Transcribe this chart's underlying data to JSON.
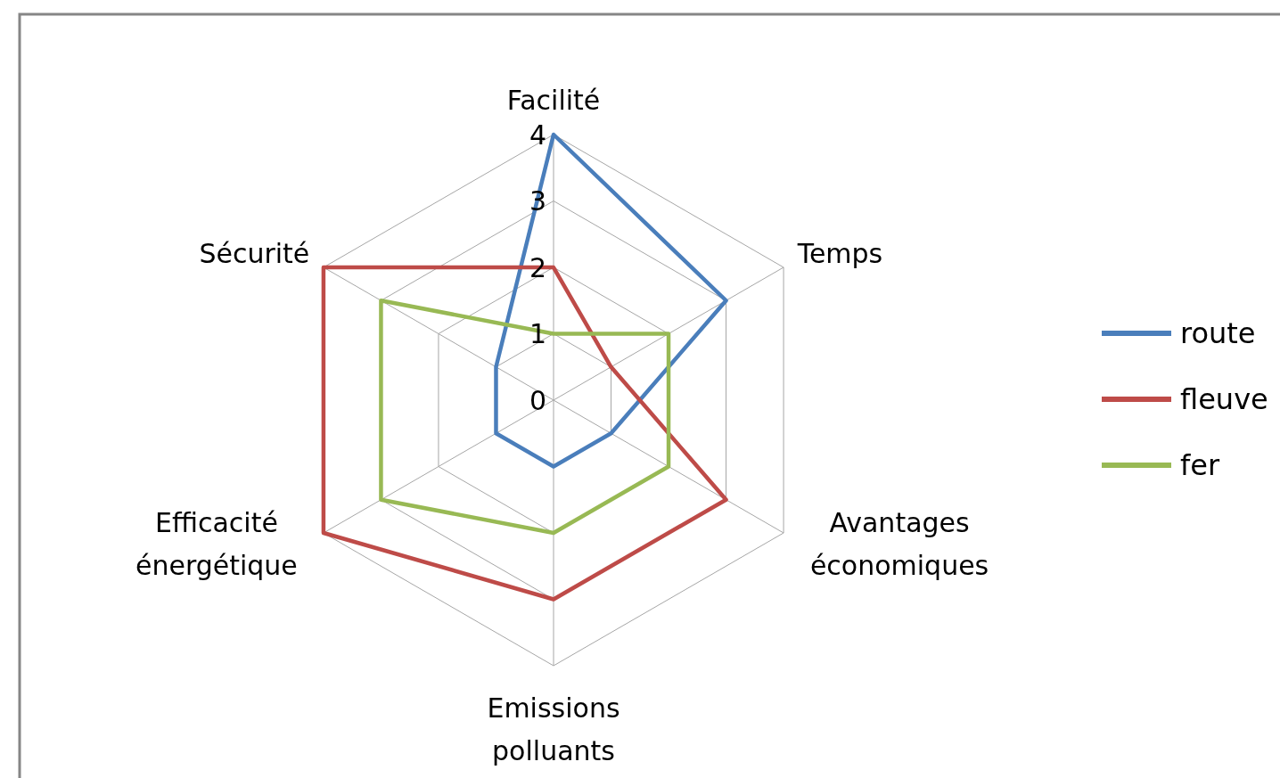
{
  "chart_data": {
    "type": "radar",
    "categories": [
      "Facilité",
      "Temps",
      "Avantages économiques",
      "Emissions polluants",
      "Efficacité énergétique",
      "Sécurité"
    ],
    "series": [
      {
        "name": "route",
        "color": "#4a7ebb",
        "values": [
          4,
          3,
          1,
          1,
          1,
          1
        ]
      },
      {
        "name": "fleuve",
        "color": "#be4b48",
        "values": [
          2,
          1,
          3,
          3,
          4,
          4
        ]
      },
      {
        "name": "fer",
        "color": "#98b954",
        "values": [
          1,
          2,
          2,
          2,
          3,
          3
        ]
      }
    ],
    "ylim": [
      0,
      4
    ],
    "yticks": [
      0,
      1,
      2,
      3,
      4
    ],
    "grid": true,
    "legend": "right"
  }
}
